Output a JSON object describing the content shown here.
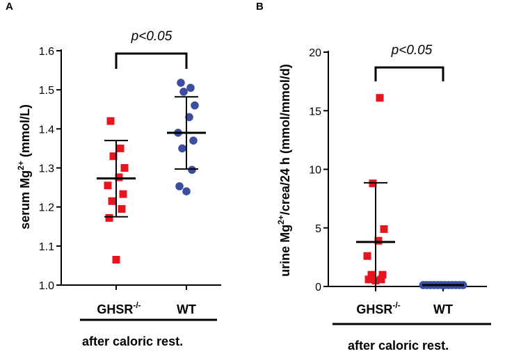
{
  "chart_data": [
    {
      "type": "scatter",
      "panel_label": "A",
      "ylabel_parts": [
        "serum Mg",
        "2+",
        " (mmol/L)"
      ],
      "ylim": [
        1.0,
        1.6
      ],
      "yticks": [
        "1.0",
        "1.1",
        "1.2",
        "1.3",
        "1.4",
        "1.5",
        "1.6"
      ],
      "categories": [
        {
          "base": "GHSR",
          "sup": "-/-"
        },
        {
          "base": "WT",
          "sup": ""
        }
      ],
      "series": [
        {
          "name": "GHSR-/-",
          "marker": "square",
          "color": "#e8141e",
          "values": [
            1.065,
            1.172,
            1.195,
            1.215,
            1.233,
            1.255,
            1.276,
            1.3,
            1.33,
            1.35,
            1.42
          ],
          "mean": 1.273,
          "sd_low": 1.175,
          "sd_high": 1.37
        },
        {
          "name": "WT",
          "marker": "circle",
          "color": "#3b4ea0",
          "values": [
            1.24,
            1.253,
            1.295,
            1.35,
            1.37,
            1.39,
            1.43,
            1.46,
            1.495,
            1.505,
            1.518
          ],
          "mean": 1.39,
          "sd_low": 1.297,
          "sd_high": 1.482
        }
      ],
      "significance": "p<0.05",
      "footnote": "after caloric rest."
    },
    {
      "type": "scatter",
      "panel_label": "B",
      "ylabel_parts": [
        "urine Mg",
        "2+",
        "/crea/24 h (mmol/mmol/d)"
      ],
      "ylim": [
        0,
        20
      ],
      "yticks": [
        "0",
        "5",
        "10",
        "15",
        "20"
      ],
      "categories": [
        {
          "base": "GHSR",
          "sup": "-/-"
        },
        {
          "base": "WT",
          "sup": ""
        }
      ],
      "series": [
        {
          "name": "GHSR-/-",
          "marker": "square",
          "color": "#e8141e",
          "values": [
            0.5,
            0.6,
            0.6,
            1.0,
            1.0,
            2.6,
            3.9,
            4.9,
            8.8,
            16.1
          ],
          "mean": 3.8,
          "sd_low": 0.0,
          "sd_high": 8.85
        },
        {
          "name": "WT",
          "marker": "circle",
          "color": "#3b4ea0",
          "values": [
            0.12,
            0.12,
            0.12,
            0.12,
            0.12,
            0.12,
            0.12,
            0.12,
            0.12,
            0.12,
            0.12,
            0.12
          ],
          "mean": 0.12,
          "sd_low": 0.08,
          "sd_high": 0.16
        }
      ],
      "significance": "p<0.05",
      "footnote": "after caloric rest."
    }
  ]
}
